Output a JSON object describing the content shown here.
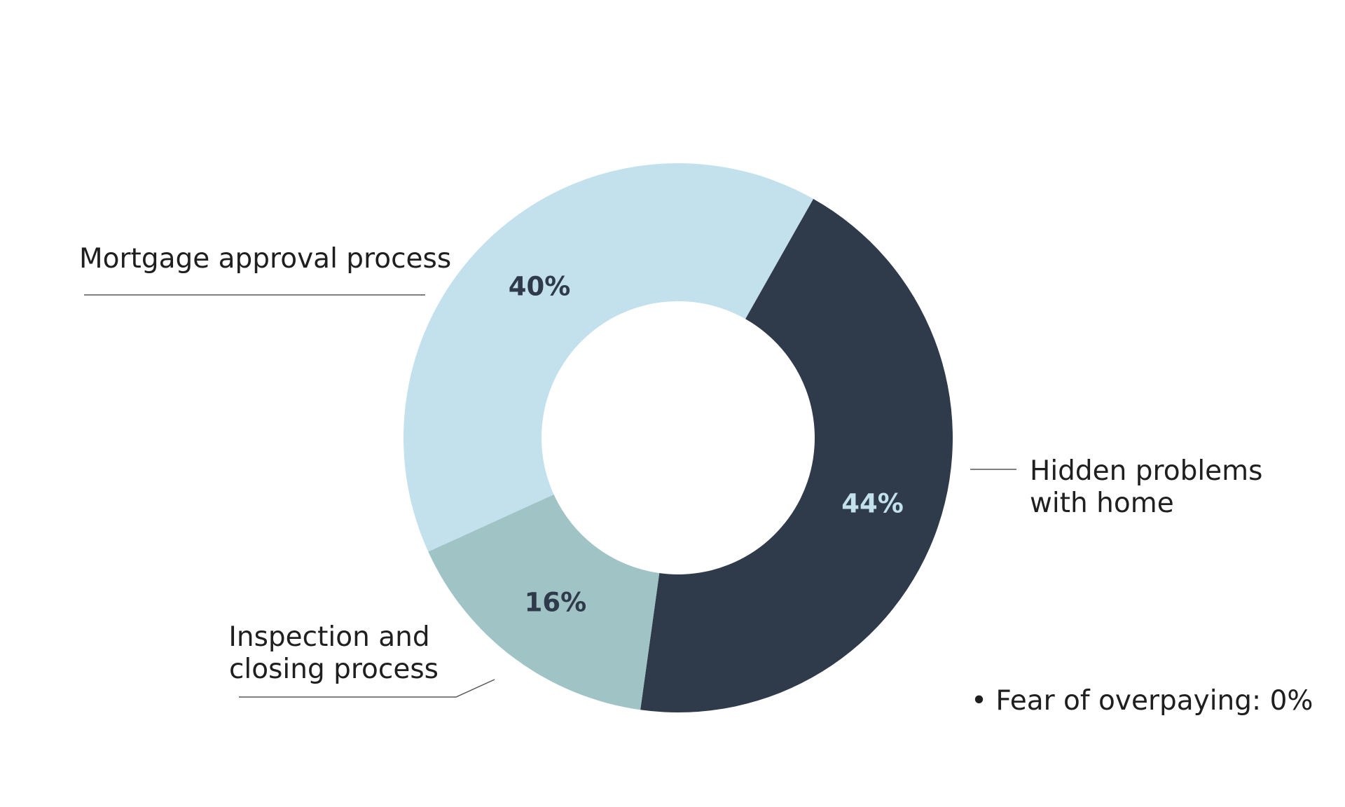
{
  "chart_data": {
    "type": "pie",
    "style": "donut",
    "slices": [
      {
        "label": "Hidden problems with home",
        "label_lines": [
          "Hidden problems",
          "with home"
        ],
        "value": 44,
        "value_label": "44%",
        "color": "#2f3b4a",
        "value_color": "#c2e1ec"
      },
      {
        "label": "Inspection and closing process",
        "label_lines": [
          "Inspection and",
          "closing process"
        ],
        "value": 16,
        "value_label": "16%",
        "color": "#a0c4c6",
        "value_color": "#2f3b4a"
      },
      {
        "label": "Mortgage approval process",
        "label_lines": [
          "Mortgage approval process"
        ],
        "value": 40,
        "value_label": "40%",
        "color": "#c2e1ec",
        "value_color": "#2f3b4a"
      }
    ],
    "note": "• Fear of overpaying: 0%",
    "legend": "none"
  }
}
